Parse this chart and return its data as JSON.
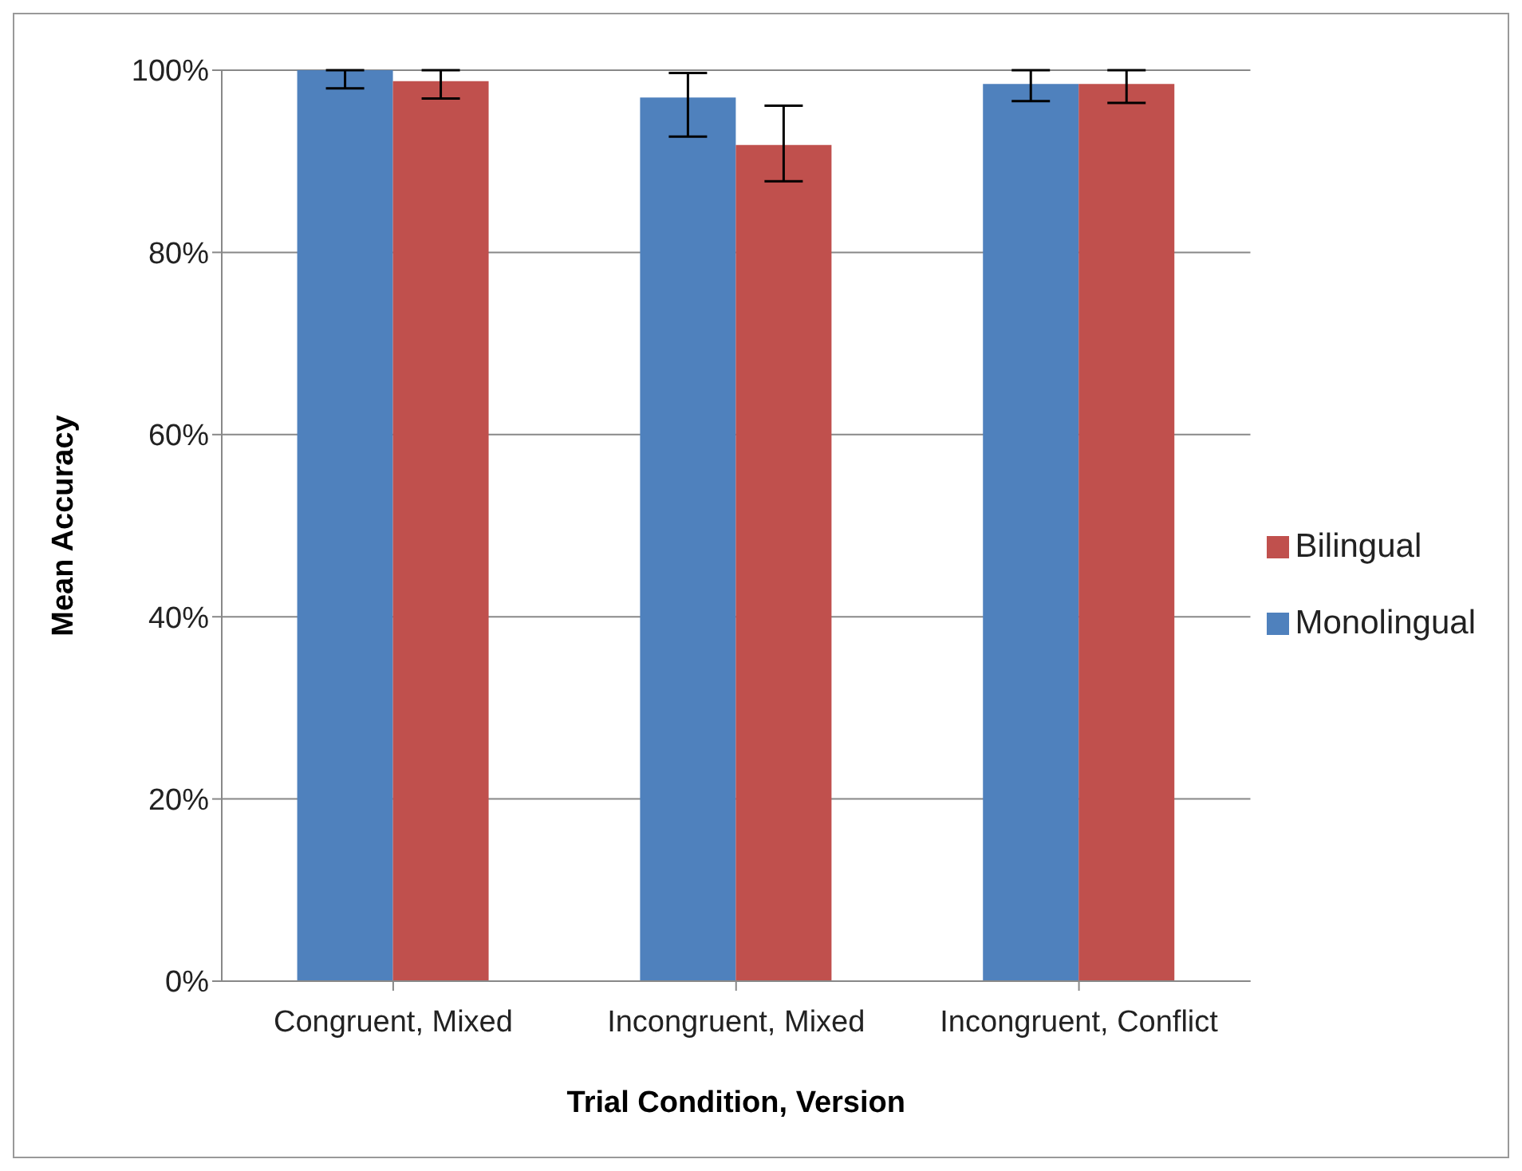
{
  "chart_data": {
    "type": "bar",
    "xlabel": "Trial Condition, Version",
    "ylabel": "Mean Accuracy",
    "categories": [
      "Congruent, Mixed",
      "Incongruent, Mixed",
      "Incongruent, Conflict"
    ],
    "series": [
      {
        "name": "Monolingual",
        "color": "#4f81bd",
        "values": [
          100,
          97,
          98.5
        ],
        "errors": [
          [
            98,
            100
          ],
          [
            92.7,
            99.7
          ],
          [
            96.6,
            100
          ]
        ]
      },
      {
        "name": "Bilingual",
        "color": "#c0504d",
        "values": [
          98.8,
          91.8,
          98.5
        ],
        "errors": [
          [
            96.9,
            100
          ],
          [
            87.8,
            96.1
          ],
          [
            96.4,
            100
          ]
        ]
      }
    ],
    "ylim": [
      0,
      100
    ],
    "yticks": [
      {
        "value": 0,
        "label": "0%"
      },
      {
        "value": 20,
        "label": "20%"
      },
      {
        "value": 40,
        "label": "40%"
      },
      {
        "value": 60,
        "label": "60%"
      },
      {
        "value": 80,
        "label": "80%"
      },
      {
        "value": 100,
        "label": "100%"
      }
    ],
    "grid": "y",
    "legend": "right"
  }
}
